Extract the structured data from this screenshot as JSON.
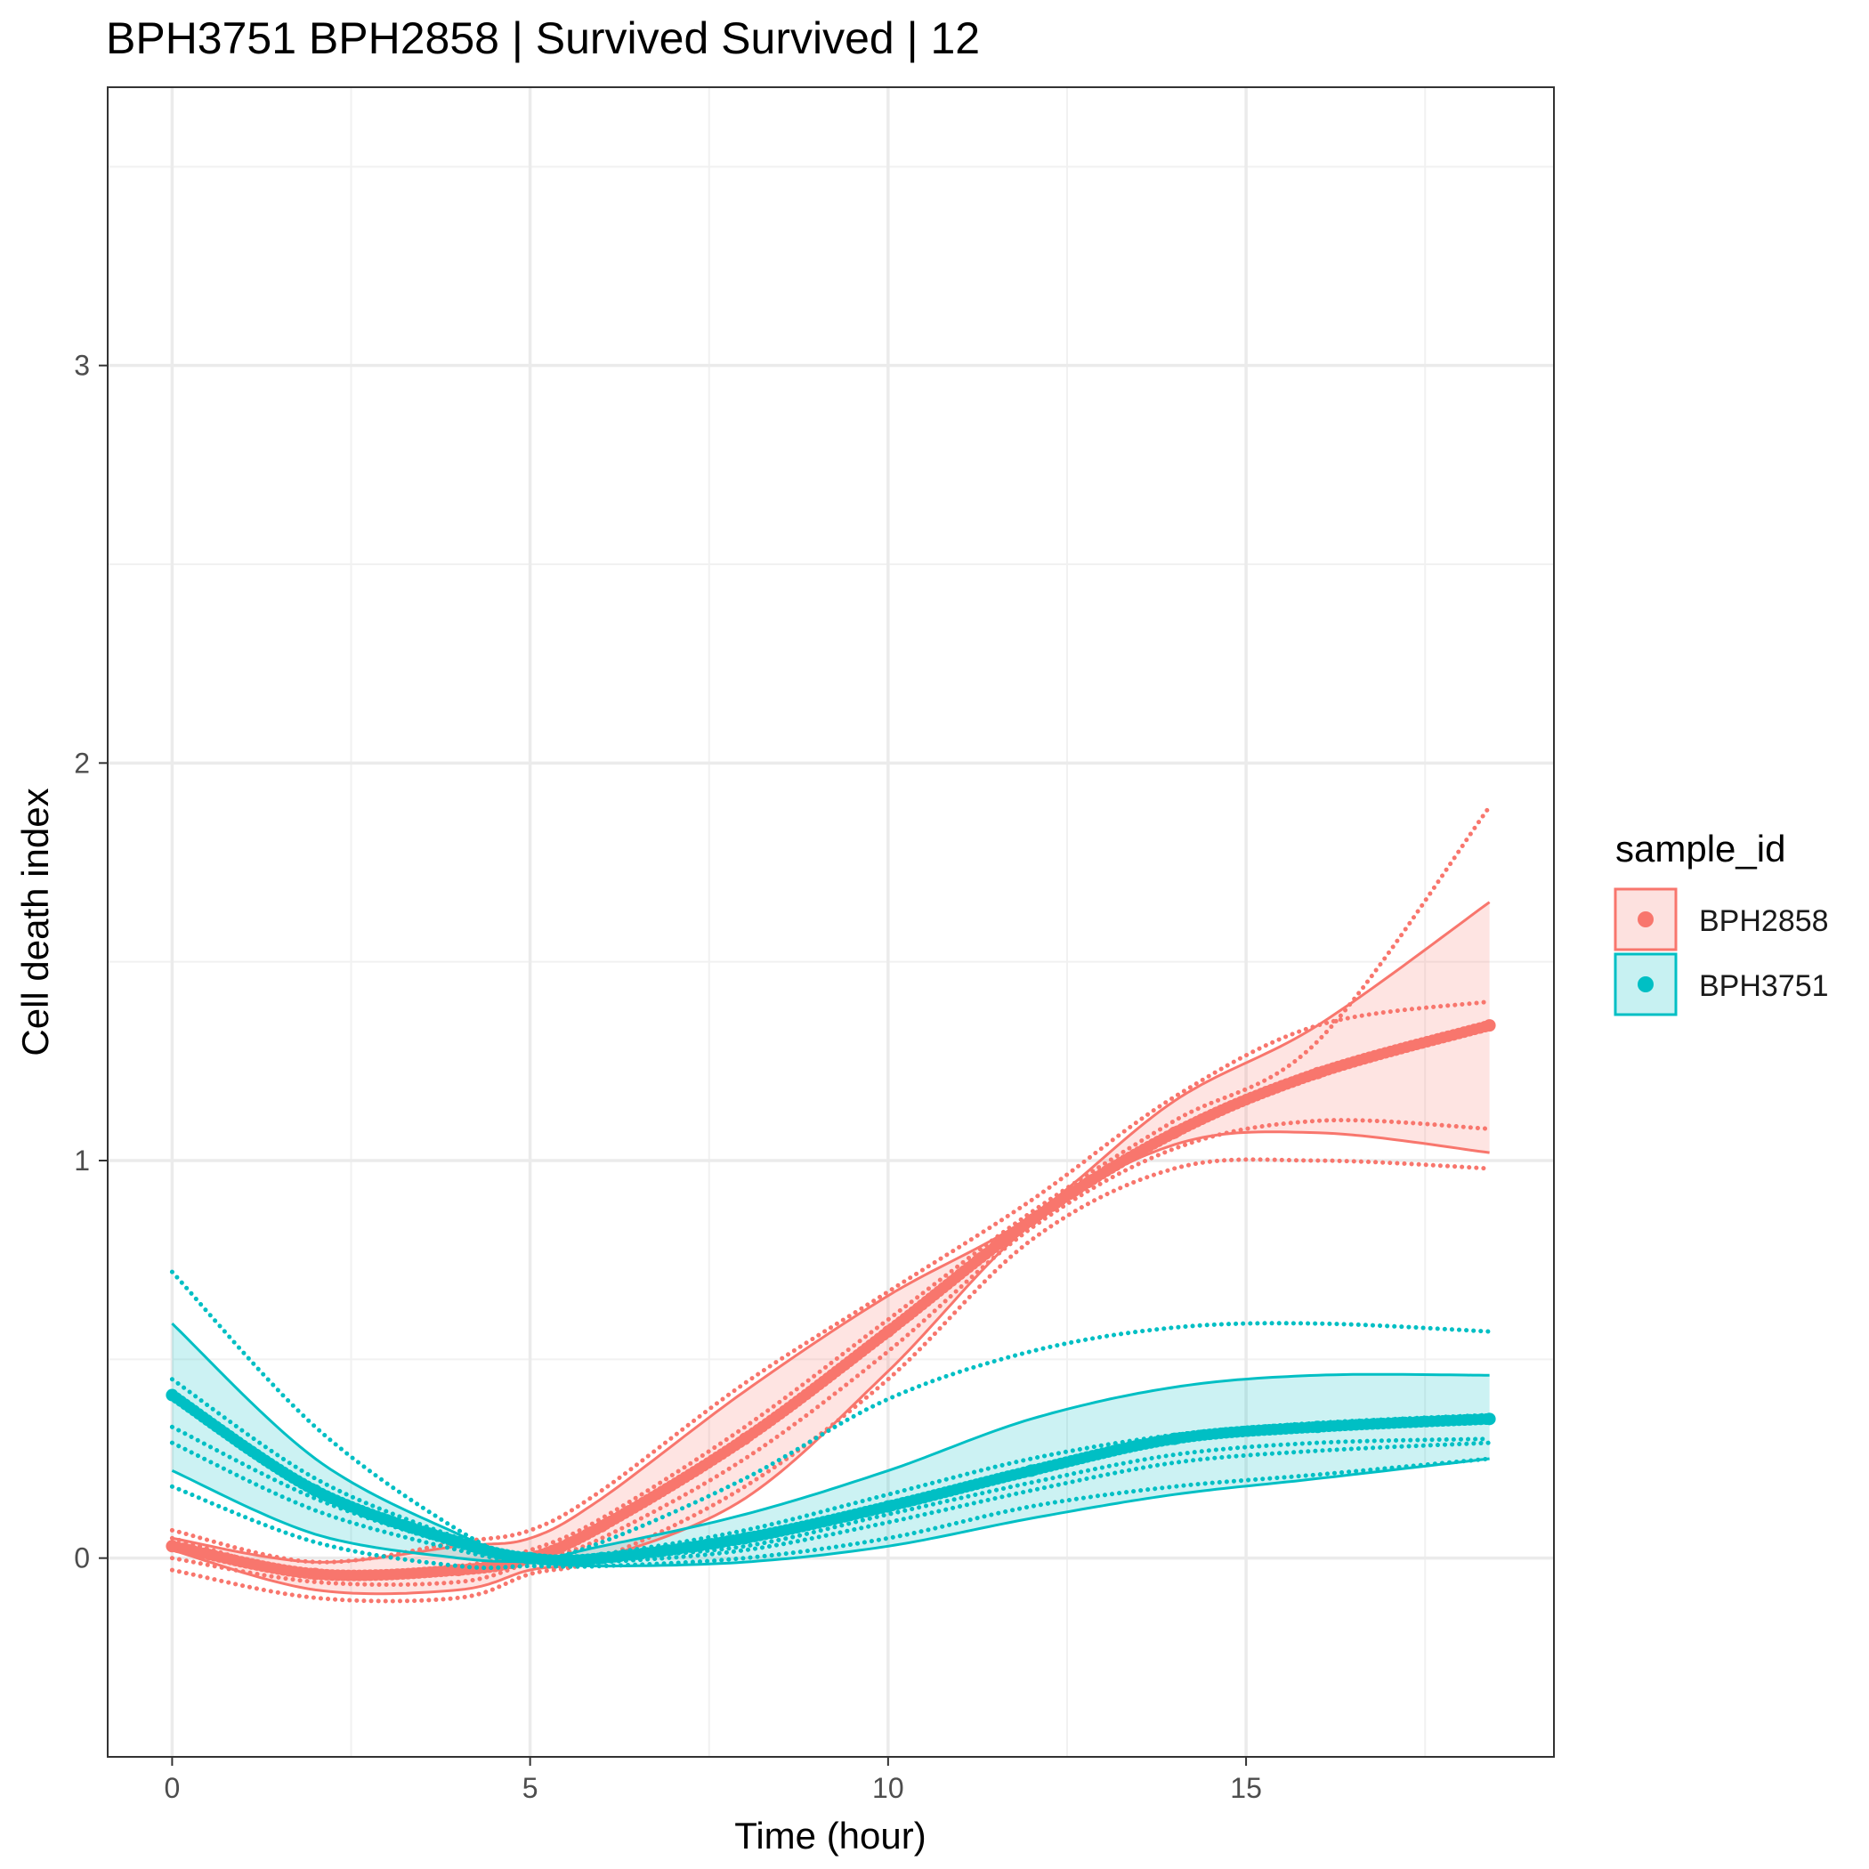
{
  "chart_data": {
    "type": "line",
    "title": "BPH3751 BPH2858 | Survived Survived | 12",
    "xlabel": "Time (hour)",
    "ylabel": "Cell death index",
    "xlim": [
      -0.9,
      19.3
    ],
    "ylim": [
      -0.5,
      3.7
    ],
    "x_ticks": [
      0,
      5,
      10,
      15
    ],
    "y_ticks": [
      0,
      1,
      2,
      3
    ],
    "x_tick_labels": [
      "0",
      "5",
      "10",
      "15"
    ],
    "y_tick_labels": [
      "0",
      "1",
      "2",
      "3"
    ],
    "grid": true,
    "legend": {
      "title": "sample_id",
      "position": "right",
      "entries": [
        {
          "label": "BPH2858",
          "color": "#F8766D"
        },
        {
          "label": "BPH3751",
          "color": "#00BFC4"
        }
      ]
    },
    "x": [
      0,
      2,
      4,
      5,
      6,
      8,
      10,
      12,
      14,
      16,
      18.4
    ],
    "series": [
      {
        "name": "BPH2858",
        "color": "#F8766D",
        "mean": [
          0.03,
          -0.04,
          -0.03,
          0.0,
          0.08,
          0.3,
          0.57,
          0.85,
          1.07,
          1.22,
          1.34
        ],
        "ci_upper": [
          0.05,
          -0.01,
          0.03,
          0.05,
          0.15,
          0.42,
          0.66,
          0.86,
          1.15,
          1.34,
          1.65
        ],
        "ci_lower": [
          0.02,
          -0.08,
          -0.08,
          -0.03,
          0.0,
          0.15,
          0.47,
          0.84,
          1.04,
          1.07,
          1.02
        ],
        "replicates": [
          [
            0.07,
            -0.01,
            0.04,
            0.07,
            0.17,
            0.44,
            0.67,
            0.9,
            1.16,
            1.34,
            1.4
          ],
          [
            0.05,
            -0.04,
            -0.02,
            0.02,
            0.1,
            0.33,
            0.6,
            0.87,
            1.1,
            1.3,
            1.89
          ],
          [
            0.0,
            -0.06,
            -0.06,
            -0.01,
            0.05,
            0.25,
            0.52,
            0.83,
            1.03,
            1.1,
            1.08
          ],
          [
            -0.03,
            -0.1,
            -0.1,
            -0.04,
            0.0,
            0.18,
            0.45,
            0.8,
            0.98,
            1.0,
            0.98
          ]
        ]
      },
      {
        "name": "BPH3751",
        "color": "#00BFC4",
        "mean": [
          0.41,
          0.17,
          0.04,
          0.0,
          0.0,
          0.05,
          0.13,
          0.22,
          0.3,
          0.33,
          0.35
        ],
        "ci_upper": [
          0.59,
          0.25,
          0.06,
          0.0,
          0.03,
          0.11,
          0.22,
          0.35,
          0.43,
          0.46,
          0.46
        ],
        "ci_lower": [
          0.22,
          0.06,
          0.0,
          -0.01,
          -0.02,
          -0.01,
          0.03,
          0.1,
          0.16,
          0.2,
          0.25
        ],
        "replicates": [
          [
            0.72,
            0.33,
            0.07,
            0.0,
            0.04,
            0.2,
            0.4,
            0.52,
            0.58,
            0.59,
            0.57
          ],
          [
            0.45,
            0.2,
            0.05,
            0.0,
            0.01,
            0.07,
            0.16,
            0.25,
            0.31,
            0.34,
            0.36
          ],
          [
            0.33,
            0.15,
            0.03,
            -0.01,
            0.0,
            0.03,
            0.11,
            0.19,
            0.26,
            0.29,
            0.3
          ],
          [
            0.29,
            0.12,
            0.02,
            -0.01,
            -0.01,
            0.02,
            0.09,
            0.17,
            0.24,
            0.27,
            0.29
          ],
          [
            0.18,
            0.04,
            -0.02,
            -0.02,
            -0.02,
            0.0,
            0.05,
            0.13,
            0.18,
            0.21,
            0.25
          ]
        ]
      }
    ]
  }
}
